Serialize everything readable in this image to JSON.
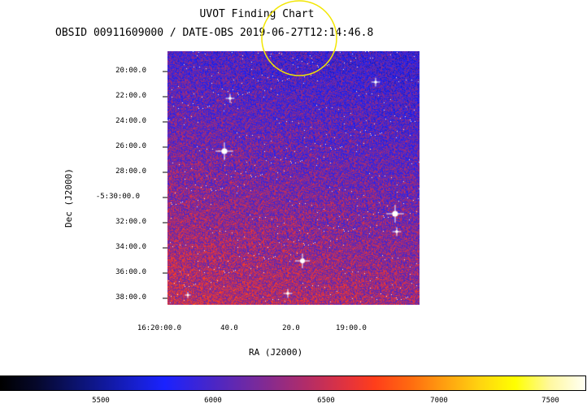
{
  "title": "UVOT Finding Chart",
  "subtitle": "OBSID 00911609000 / DATE-OBS 2019-06-27T12:14:46.8",
  "axes": {
    "xlabel": "RA (J2000)",
    "ylabel": "Dec (J2000)",
    "dec_ticks": [
      "20:00.0",
      "22:00.0",
      "24:00.0",
      "26:00.0",
      "28:00.0",
      "-5:30:00.0",
      "32:00.0",
      "34:00.0",
      "36:00.0",
      "38:00.0"
    ],
    "ra_ticks": [
      "16:20:00.0",
      "40.0",
      "20.0",
      "19:00.0"
    ]
  },
  "colorbar": {
    "ticks": [
      "5500",
      "6000",
      "6500",
      "7000",
      "7500"
    ],
    "colors": [
      "#000000",
      "#1a22ff",
      "#ff3e1a",
      "#ffff00",
      "#fffff4"
    ]
  },
  "marker": {
    "color": "#f2e600",
    "shape": "circle"
  }
}
